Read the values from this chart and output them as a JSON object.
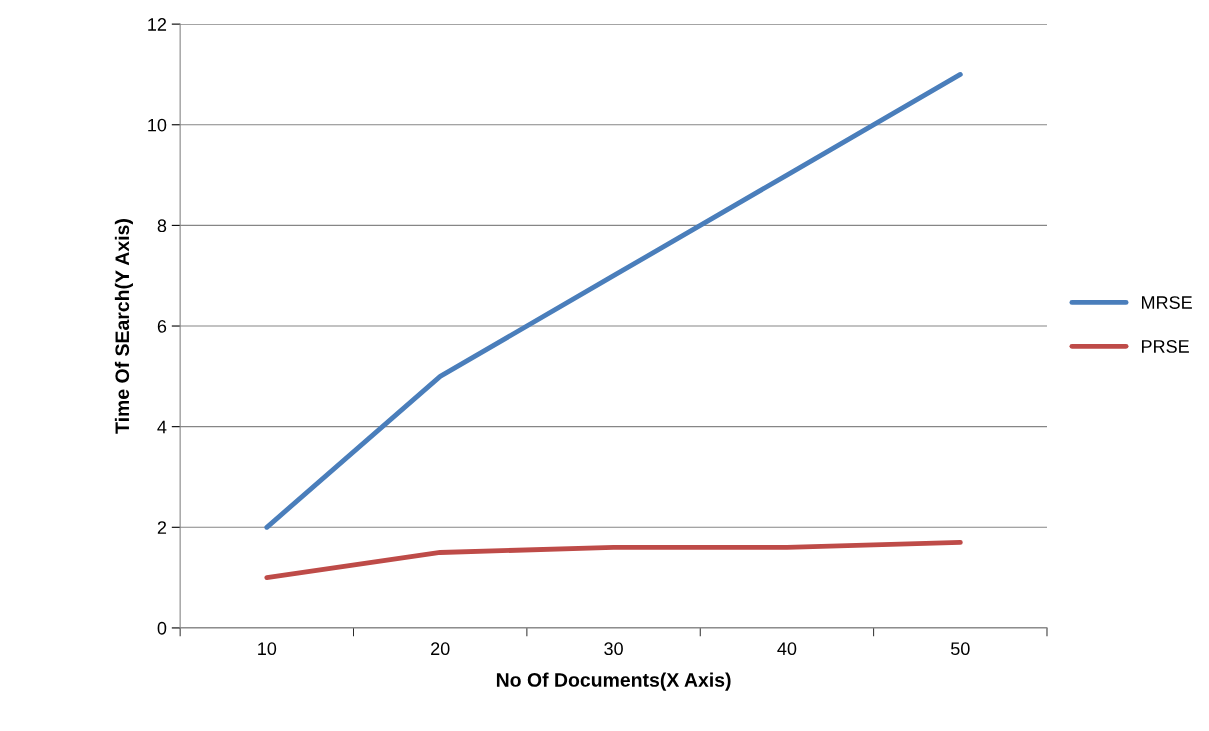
{
  "chart_data": {
    "type": "line",
    "xlabel": "No Of Documents(X Axis)",
    "ylabel": "Time Of SEarch(Y Axis)",
    "categories": [
      "10",
      "20",
      "30",
      "40",
      "50"
    ],
    "series": [
      {
        "name": "MRSE",
        "color": "#4a7ebb",
        "values": [
          2,
          5,
          7,
          9,
          11
        ]
      },
      {
        "name": "PRSE",
        "color": "#be4b48",
        "values": [
          1,
          1.5,
          1.6,
          1.6,
          1.7
        ]
      }
    ],
    "ylim": [
      0,
      12
    ],
    "yticks": [
      0,
      2,
      4,
      6,
      8,
      10,
      12
    ],
    "grid": "y",
    "legend": "right",
    "marker": "none",
    "line_style": "solid"
  }
}
